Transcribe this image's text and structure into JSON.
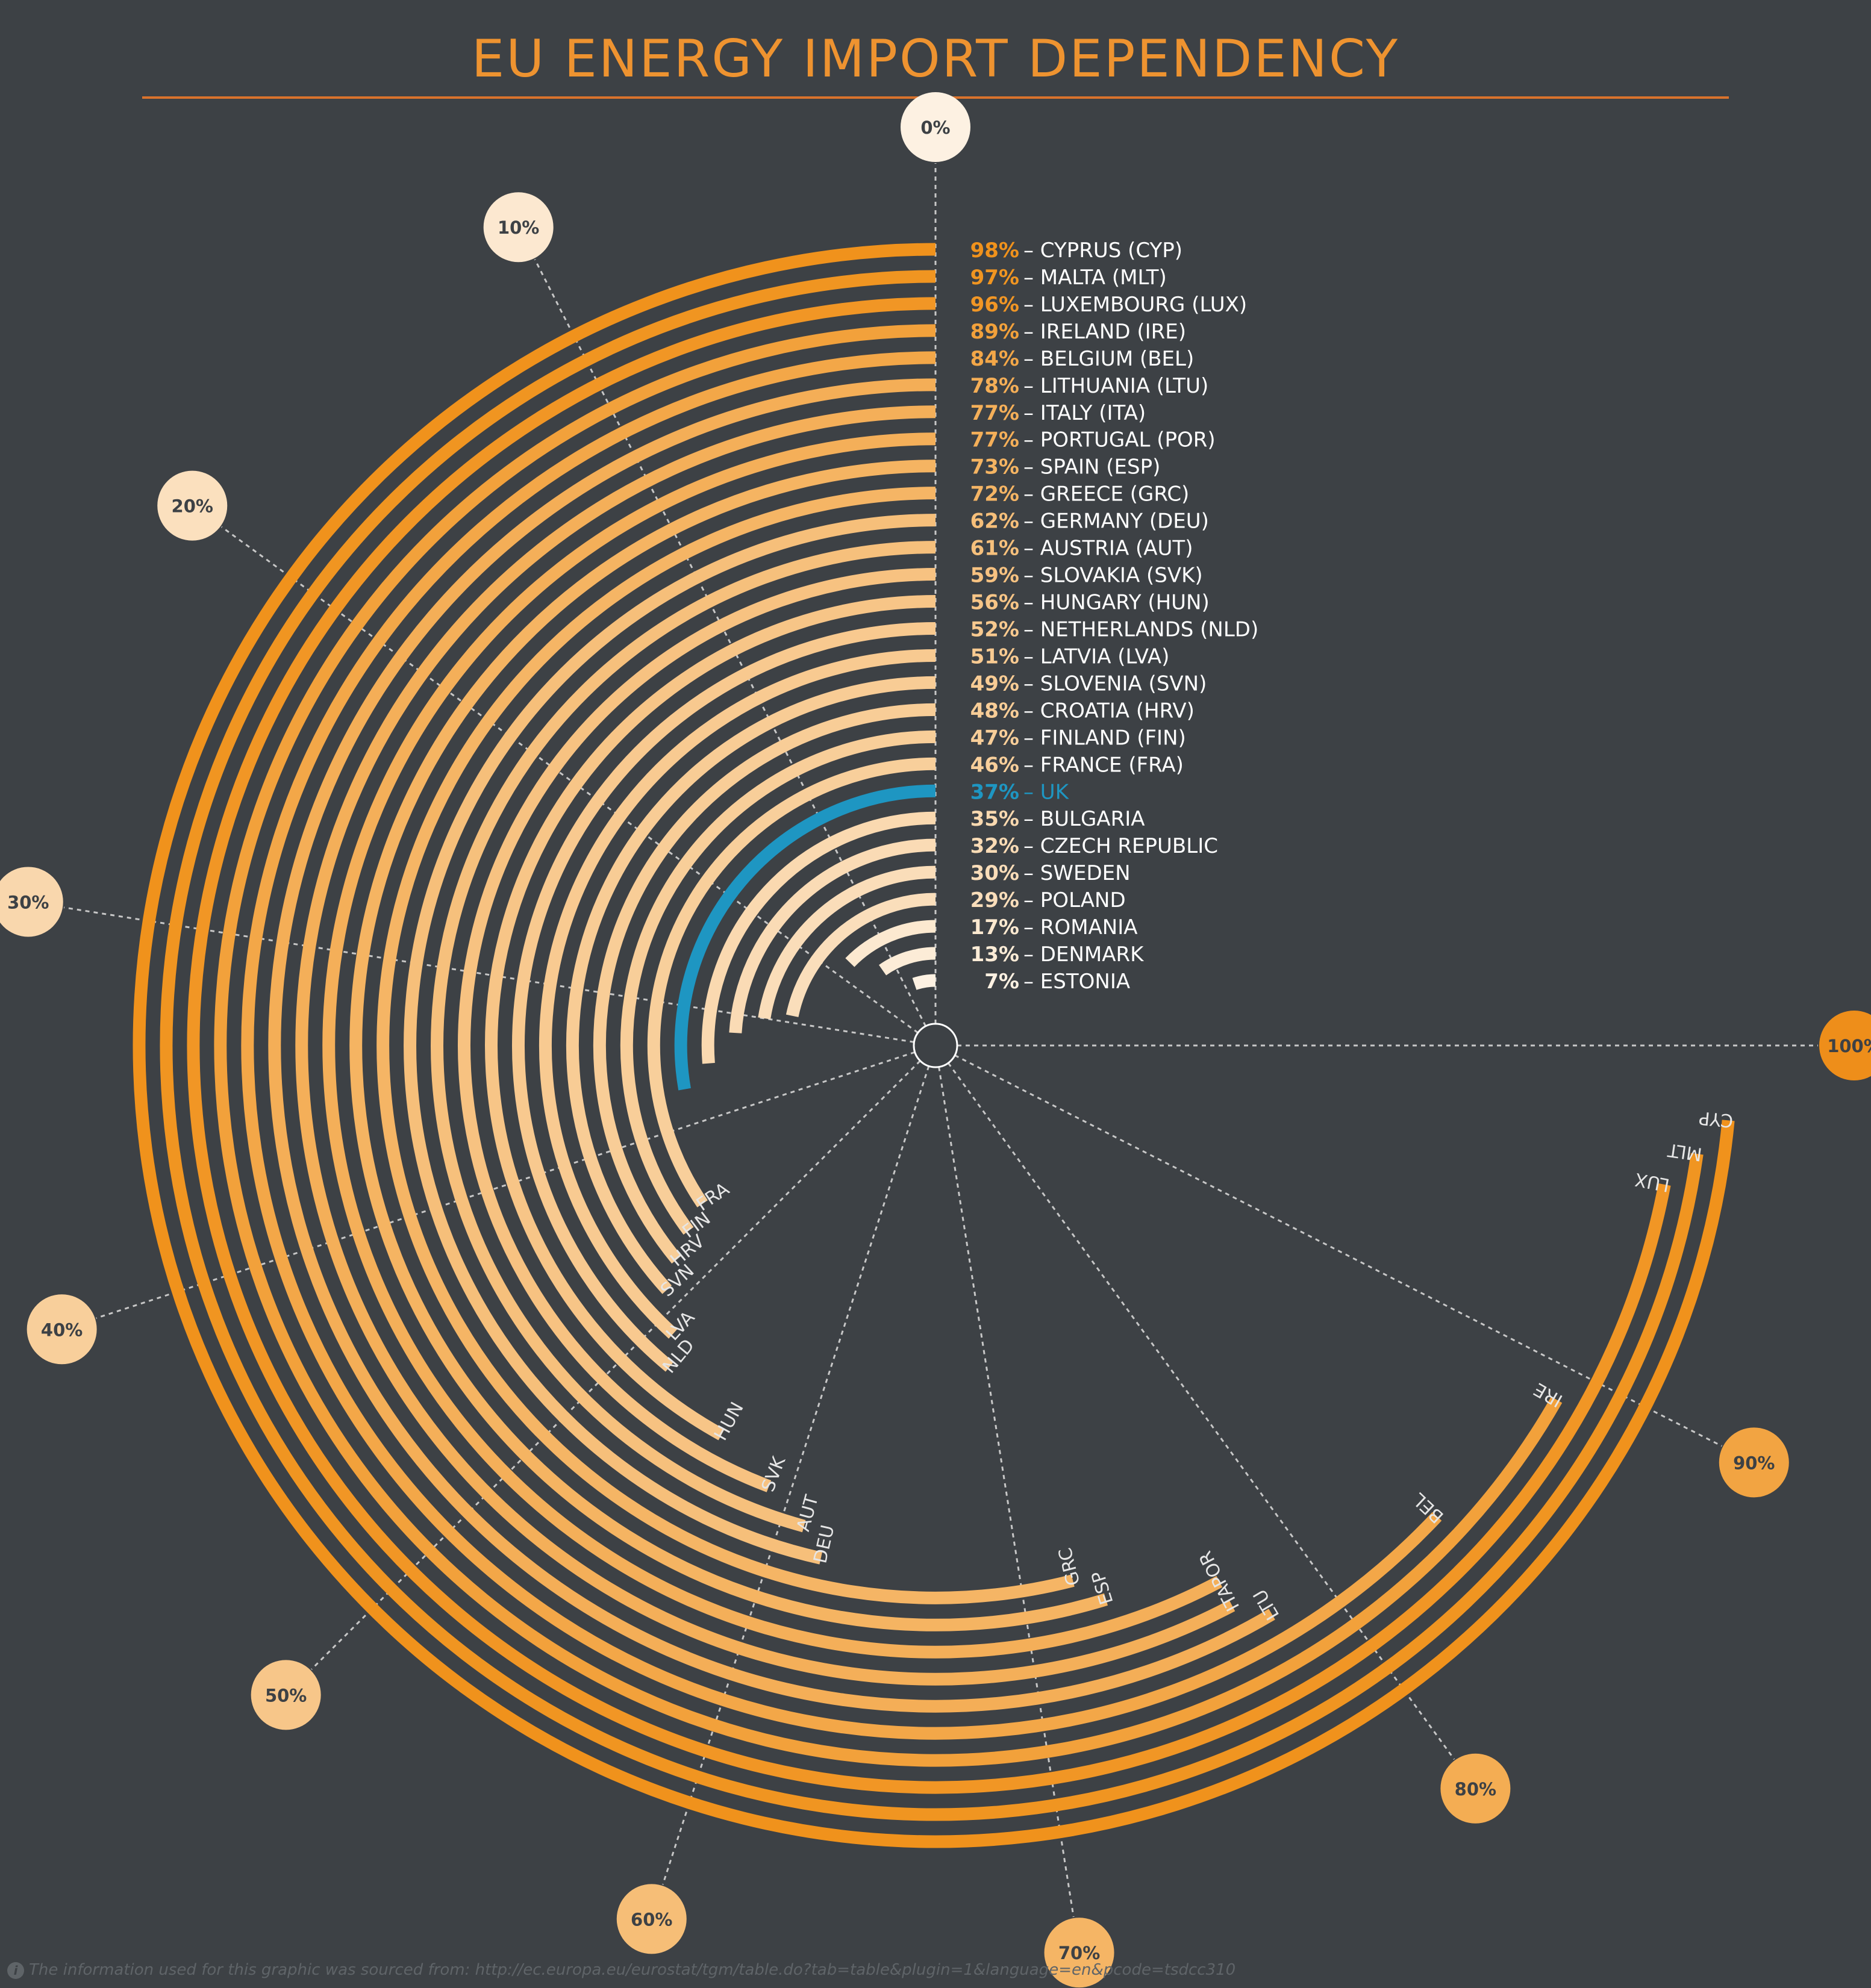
{
  "chart_data": {
    "type": "radial-bar",
    "title": "EU ENERGY IMPORT DEPENDENCY",
    "unit": "%",
    "axis_ticks": [
      "0%",
      "10%",
      "20%",
      "30%",
      "40%",
      "50%",
      "60%",
      "70%",
      "80%",
      "90%",
      "100%"
    ],
    "range": [
      0,
      100
    ],
    "colors": {
      "background": "#3d4145",
      "title": "#ee9330",
      "highlight": "#1e96c2",
      "low": "#fdf1e2",
      "high": "#f0921c",
      "gridline": "#c7c7c7"
    },
    "highlight_country": "UK",
    "items": [
      {
        "pct": "98%",
        "label": "CYPRUS (CYP)",
        "code": "CYP",
        "value": 98
      },
      {
        "pct": "97%",
        "label": "MALTA (MLT)",
        "code": "MLT",
        "value": 97
      },
      {
        "pct": "96%",
        "label": "LUXEMBOURG (LUX)",
        "code": "LUX",
        "value": 96
      },
      {
        "pct": "89%",
        "label": "IRELAND (IRE)",
        "code": "IRE",
        "value": 89
      },
      {
        "pct": "84%",
        "label": "BELGIUM (BEL)",
        "code": "BEL",
        "value": 84
      },
      {
        "pct": "78%",
        "label": "LITHUANIA (LTU)",
        "code": "LTU",
        "value": 78
      },
      {
        "pct": "77%",
        "label": "ITALY (ITA)",
        "code": "ITA",
        "value": 77
      },
      {
        "pct": "77%",
        "label": "PORTUGAL (POR)",
        "code": "POR",
        "value": 77
      },
      {
        "pct": "73%",
        "label": "SPAIN (ESP)",
        "code": "ESP",
        "value": 73
      },
      {
        "pct": "72%",
        "label": "GREECE (GRC)",
        "code": "GRC",
        "value": 72
      },
      {
        "pct": "62%",
        "label": "GERMANY (DEU)",
        "code": "DEU",
        "value": 62
      },
      {
        "pct": "61%",
        "label": "AUSTRIA (AUT)",
        "code": "AUT",
        "value": 61
      },
      {
        "pct": "59%",
        "label": "SLOVAKIA (SVK)",
        "code": "SVK",
        "value": 59
      },
      {
        "pct": "56%",
        "label": "HUNGARY (HUN)",
        "code": "HUN",
        "value": 56
      },
      {
        "pct": "52%",
        "label": "NETHERLANDS (NLD)",
        "code": "NLD",
        "value": 52
      },
      {
        "pct": "51%",
        "label": "LATVIA (LVA)",
        "code": "LVA",
        "value": 51
      },
      {
        "pct": "49%",
        "label": "SLOVENIA (SVN)",
        "code": "SVN",
        "value": 49
      },
      {
        "pct": "48%",
        "label": "CROATIA (HRV)",
        "code": "HRV",
        "value": 48
      },
      {
        "pct": "47%",
        "label": "FINLAND (FIN)",
        "code": "FIN",
        "value": 47
      },
      {
        "pct": "46%",
        "label": "FRANCE (FRA)",
        "code": "FRA",
        "value": 46
      },
      {
        "pct": "37%",
        "label": "UK",
        "code": "",
        "value": 37,
        "highlight": true
      },
      {
        "pct": "35%",
        "label": "BULGARIA",
        "code": "",
        "value": 35
      },
      {
        "pct": "32%",
        "label": "CZECH REPUBLIC",
        "code": "",
        "value": 32
      },
      {
        "pct": "30%",
        "label": "SWEDEN",
        "code": "",
        "value": 30
      },
      {
        "pct": "29%",
        "label": "POLAND",
        "code": "",
        "value": 29
      },
      {
        "pct": "17%",
        "label": "ROMANIA",
        "code": "",
        "value": 17
      },
      {
        "pct": "13%",
        "label": "DENMARK",
        "code": "",
        "value": 13
      },
      {
        "pct": "7%",
        "label": "ESTONIA",
        "code": "",
        "value": 7
      }
    ]
  },
  "source": "The information used for this graphic was sourced from: http://ec.europa.eu/eurostat/tgm/table.do?tab=table&plugin=1&language=en&pcode=tsdcc310"
}
